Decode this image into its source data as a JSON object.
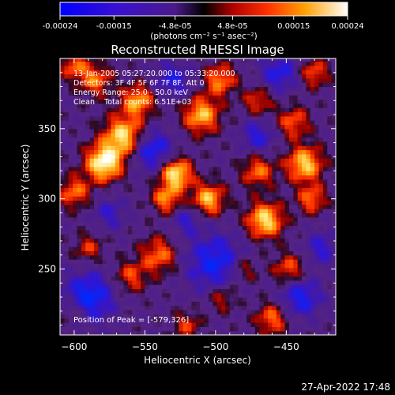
{
  "colorbar": {
    "ticks": [
      "-0.00024",
      "-0.00015",
      "-4.8e-05",
      "4.8e-05",
      "0.00015",
      "0.00024"
    ],
    "tick_values": [
      -0.00024,
      -0.00015,
      -4.8e-05,
      4.8e-05,
      0.00015,
      0.00024
    ],
    "range": [
      -0.00024,
      0.00024
    ],
    "units_label": "(photons cm⁻² s⁻¹ asec⁻²)"
  },
  "chart_data": {
    "type": "heatmap",
    "title": "Reconstructed RHESSI Image",
    "xlabel": "Heliocentric X (arcsec)",
    "ylabel": "Heliocentric Y (arcsec)",
    "xlim": [
      -610,
      -415
    ],
    "ylim": [
      203,
      400
    ],
    "x_ticks": [
      -600,
      -550,
      -500,
      -450
    ],
    "y_ticks": [
      250,
      300,
      350
    ],
    "x_tick_labels": [
      "−600",
      "−550",
      "−500",
      "−450"
    ],
    "y_tick_labels": [
      "250",
      "300",
      "350"
    ],
    "peak": [
      -579,
      326
    ],
    "colormap": "blue-purple-red-yellow-white",
    "annotations": [
      "13-Jan-2005 05:27:20.000 to 05:33:20.000",
      "Detectors: 3F 4F 5F 6F 7F 8F, Att 0",
      "Energy Range: 25.0 - 50.0 keV",
      "Clean    Total counts: 6.51E+03"
    ],
    "peak_label": "Position of Peak = [-579,326]"
  },
  "footer": {
    "timestamp": "27-Apr-2022 17:48"
  }
}
